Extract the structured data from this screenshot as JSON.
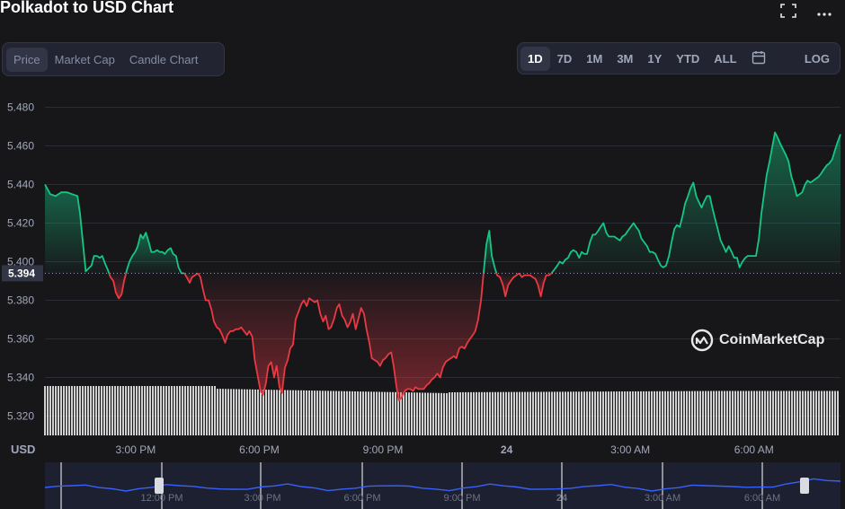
{
  "header": {
    "title": "Polkadot to USD Chart",
    "fullscreen_icon": "fullscreen-icon",
    "more_icon": "more-icon"
  },
  "chart_tabs": [
    "Price",
    "Market Cap",
    "Candle Chart"
  ],
  "active_chart_tab": "Price",
  "ranges": [
    "1D",
    "7D",
    "1M",
    "3M",
    "1Y",
    "YTD",
    "ALL"
  ],
  "active_range": "1D",
  "calendar_icon": "calendar-icon",
  "log_label": "LOG",
  "currency_label": "USD",
  "watermark": "CoinMarketCap",
  "colors": {
    "up": "#16c784",
    "down": "#ea3943",
    "background": "#17171a",
    "grid": "#2b2d36",
    "navigator_line": "#3861fb"
  },
  "chart_data": {
    "type": "line",
    "title": "Polkadot to USD Chart",
    "y_unit": "USD",
    "ylim": [
      5.31,
      5.49
    ],
    "y_ticks": [
      "5.320",
      "5.340",
      "5.360",
      "5.380",
      "5.400",
      "5.420",
      "5.440",
      "5.460",
      "5.480"
    ],
    "reference_price": 5.394,
    "reference_label": "5.394",
    "x_ticks": [
      "3:00 PM",
      "6:00 PM",
      "9:00 PM",
      "24",
      "3:00 AM",
      "6:00 AM"
    ],
    "x_start": "12:48 PM",
    "x_end": "8:08 AM",
    "time_hours_from_start": [
      0,
      0.13,
      0.26,
      0.4,
      0.53,
      0.66,
      0.79,
      0.85,
      0.92,
      0.99,
      1.13,
      1.19,
      1.26,
      1.33,
      1.39,
      1.46,
      1.52,
      1.59,
      1.66,
      1.72,
      1.79,
      1.86,
      1.92,
      1.99,
      2.05,
      2.12,
      2.19,
      2.25,
      2.32,
      2.38,
      2.45,
      2.52,
      2.58,
      2.65,
      2.72,
      2.78,
      2.85,
      2.91,
      2.98,
      3.05,
      3.11,
      3.18,
      3.24,
      3.31,
      3.38,
      3.44,
      3.51,
      3.57,
      3.64,
      3.71,
      3.77,
      3.84,
      3.9,
      3.97,
      4.04,
      4.1,
      4.17,
      4.23,
      4.3,
      4.37,
      4.43,
      4.5,
      4.56,
      4.63,
      4.7,
      4.76,
      4.83,
      4.9,
      4.96,
      5.03,
      5.09,
      5.16,
      5.23,
      5.29,
      5.36,
      5.42,
      5.49,
      5.56,
      5.62,
      5.69,
      5.75,
      5.82,
      5.89,
      5.95,
      6.02,
      6.08,
      6.15,
      6.22,
      6.28,
      6.35,
      6.41,
      6.48,
      6.55,
      6.61,
      6.68,
      6.75,
      6.81,
      6.88,
      6.94,
      7.01,
      7.08,
      7.14,
      7.21,
      7.27,
      7.34,
      7.41,
      7.47,
      7.54,
      7.6,
      7.67,
      7.74,
      7.8,
      7.87,
      7.93,
      8.0,
      8.07,
      8.13,
      8.2,
      8.26,
      8.33,
      8.4,
      8.46,
      8.53,
      8.59,
      8.66,
      8.73,
      8.79,
      8.86,
      8.93,
      8.99,
      9.06,
      9.12,
      9.19,
      9.26,
      9.32,
      9.39,
      9.45,
      9.52,
      9.59,
      9.65,
      9.72,
      9.78,
      9.85,
      9.92,
      9.98,
      10.05,
      10.11,
      10.18,
      10.25,
      10.31,
      10.38,
      10.44,
      10.51,
      10.58,
      10.64,
      10.71,
      10.78,
      10.84,
      10.91,
      10.97,
      11.04,
      11.11,
      11.17,
      11.24,
      11.3,
      11.37,
      11.44,
      11.5,
      11.57,
      11.63,
      11.7,
      11.77,
      11.83,
      11.9,
      11.96,
      12.03,
      12.1,
      12.16,
      12.23,
      12.29,
      12.36,
      12.43,
      12.49,
      12.56,
      12.62,
      12.69,
      12.76,
      12.82,
      12.89,
      12.96,
      13.02,
      13.09,
      13.15,
      13.22,
      13.29,
      13.35,
      13.42,
      13.48,
      13.55,
      13.62,
      13.68,
      13.75,
      13.81,
      13.88,
      13.95,
      14.01,
      14.08,
      14.14,
      14.21,
      14.28,
      14.34,
      14.41,
      14.47,
      14.54,
      14.61,
      14.67,
      14.74,
      14.81,
      14.87,
      14.94,
      15.0,
      15.07,
      15.14,
      15.2,
      15.27,
      15.33,
      15.4,
      15.47,
      15.53,
      15.6,
      15.66,
      15.73,
      15.8,
      15.86,
      15.93,
      15.99,
      16.06,
      16.13,
      16.19,
      16.26,
      16.32,
      16.39,
      16.46,
      16.52,
      16.59,
      16.66,
      16.72,
      16.79,
      16.85,
      16.92,
      16.99,
      17.05,
      17.12,
      17.18,
      17.25,
      17.32,
      17.38,
      17.45,
      17.51,
      17.58,
      17.65,
      17.71,
      17.78,
      17.84,
      17.91,
      17.98,
      18.04,
      18.11,
      18.17,
      18.24,
      18.31,
      18.37,
      18.44,
      18.5,
      18.57,
      18.64,
      18.7,
      18.77,
      18.84,
      18.9,
      18.97,
      19.03,
      19.1,
      19.17,
      19.23,
      19.3
    ],
    "price_usd": [
      5.44,
      5.435,
      5.434,
      5.436,
      5.436,
      5.435,
      5.434,
      5.425,
      5.41,
      5.395,
      5.398,
      5.403,
      5.403,
      5.402,
      5.403,
      5.399,
      5.396,
      5.392,
      5.39,
      5.384,
      5.381,
      5.383,
      5.39,
      5.396,
      5.4,
      5.403,
      5.405,
      5.408,
      5.414,
      5.412,
      5.415,
      5.41,
      5.405,
      5.405,
      5.406,
      5.405,
      5.405,
      5.404,
      5.406,
      5.407,
      5.404,
      5.403,
      5.397,
      5.394,
      5.394,
      5.392,
      5.389,
      5.392,
      5.393,
      5.394,
      5.392,
      5.385,
      5.38,
      5.38,
      5.375,
      5.369,
      5.366,
      5.365,
      5.362,
      5.358,
      5.362,
      5.364,
      5.364,
      5.365,
      5.365,
      5.366,
      5.364,
      5.362,
      5.364,
      5.361,
      5.349,
      5.341,
      5.333,
      5.331,
      5.337,
      5.346,
      5.348,
      5.34,
      5.346,
      5.335,
      5.332,
      5.345,
      5.349,
      5.355,
      5.357,
      5.37,
      5.374,
      5.378,
      5.38,
      5.377,
      5.381,
      5.38,
      5.379,
      5.38,
      5.373,
      5.369,
      5.372,
      5.365,
      5.366,
      5.37,
      5.376,
      5.378,
      5.372,
      5.37,
      5.366,
      5.369,
      5.373,
      5.365,
      5.37,
      5.376,
      5.373,
      5.365,
      5.358,
      5.35,
      5.349,
      5.348,
      5.346,
      5.349,
      5.35,
      5.352,
      5.353,
      5.346,
      5.335,
      5.328,
      5.33,
      5.333,
      5.334,
      5.334,
      5.333,
      5.335,
      5.334,
      5.334,
      5.334,
      5.336,
      5.337,
      5.339,
      5.34,
      5.342,
      5.34,
      5.345,
      5.348,
      5.349,
      5.35,
      5.351,
      5.35,
      5.355,
      5.356,
      5.355,
      5.358,
      5.36,
      5.362,
      5.364,
      5.37,
      5.38,
      5.394,
      5.409,
      5.416,
      5.403,
      5.397,
      5.393,
      5.392,
      5.388,
      5.382,
      5.388,
      5.39,
      5.392,
      5.393,
      5.394,
      5.392,
      5.393,
      5.393,
      5.393,
      5.392,
      5.391,
      5.388,
      5.382,
      5.389,
      5.393,
      5.393,
      5.394,
      5.396,
      5.398,
      5.4,
      5.399,
      5.401,
      5.402,
      5.405,
      5.406,
      5.405,
      5.402,
      5.405,
      5.404,
      5.404,
      5.41,
      5.414,
      5.414,
      5.416,
      5.418,
      5.42,
      5.415,
      5.413,
      5.413,
      5.413,
      5.412,
      5.411,
      5.413,
      5.414,
      5.416,
      5.418,
      5.42,
      5.418,
      5.416,
      5.412,
      5.41,
      5.408,
      5.405,
      5.405,
      5.404,
      5.401,
      5.398,
      5.397,
      5.398,
      5.403,
      5.41,
      5.417,
      5.419,
      5.418,
      5.424,
      5.43,
      5.434,
      5.438,
      5.441,
      5.434,
      5.431,
      5.428,
      5.431,
      5.434,
      5.434,
      5.428,
      5.422,
      5.417,
      5.411,
      5.408,
      5.405,
      5.408,
      5.405,
      5.402,
      5.402,
      5.397,
      5.4,
      5.402,
      5.403,
      5.403,
      5.403,
      5.403,
      5.412,
      5.425,
      5.436,
      5.445,
      5.452,
      5.46,
      5.467,
      5.464,
      5.461,
      5.458,
      5.455,
      5.452,
      5.444,
      5.44,
      5.434,
      5.435,
      5.436,
      5.44,
      5.442,
      5.441,
      5.442,
      5.443,
      5.444,
      5.446,
      5.448,
      5.45,
      5.451,
      5.453,
      5.458,
      5.462,
      5.466,
      5.47,
      5.475,
      5.479,
      5.482,
      5.475,
      5.464,
      5.46
    ]
  }
}
